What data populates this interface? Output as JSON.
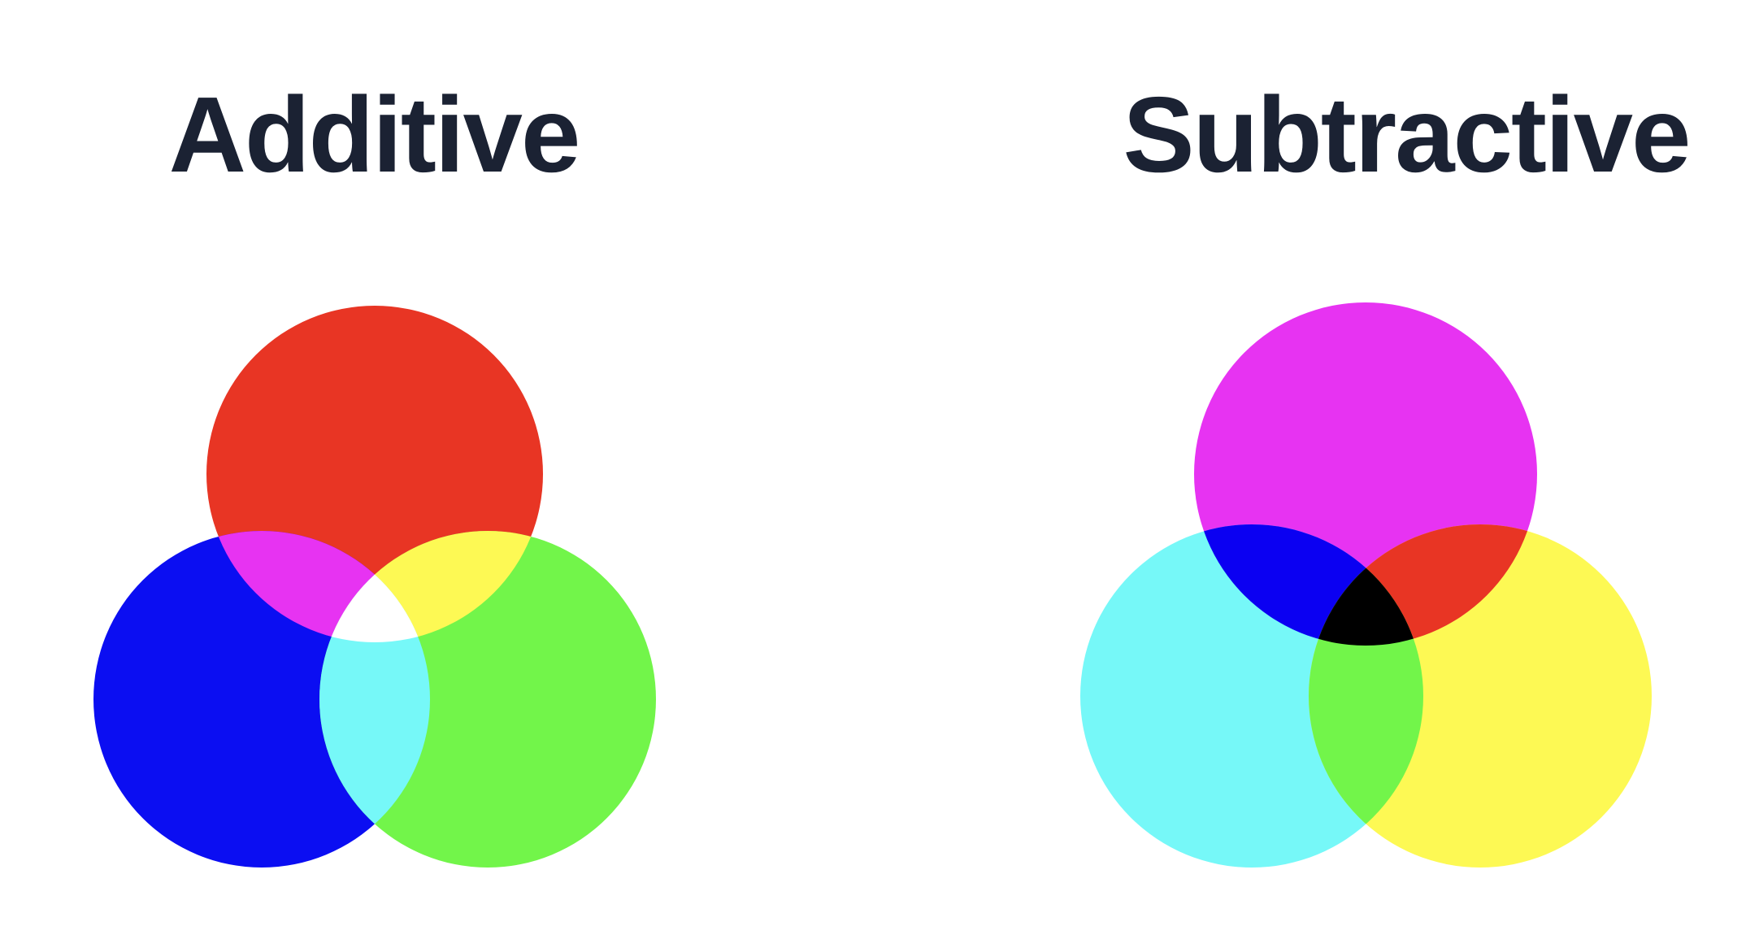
{
  "additive": {
    "title": "Additive",
    "circles": [
      {
        "name": "red-circle",
        "color": "#e83524"
      },
      {
        "name": "blue-circle",
        "color": "#0b0ef2"
      },
      {
        "name": "green-circle",
        "color": "#72f54a"
      }
    ],
    "overlaps": {
      "red_blue": "#e733f2",
      "red_green": "#fdf954",
      "blue_green": "#76f8f8",
      "center": "#ffffff"
    }
  },
  "subtractive": {
    "title": "Subtractive",
    "circles": [
      {
        "name": "magenta-circle",
        "color": "#e733f2"
      },
      {
        "name": "cyan-circle",
        "color": "#76f8f8"
      },
      {
        "name": "yellow-circle",
        "color": "#fdf954"
      }
    ],
    "overlaps": {
      "magenta_cyan": "#0b00f2",
      "magenta_yellow": "#e83524",
      "cyan_yellow": "#72f54a",
      "center": "#000000"
    }
  }
}
